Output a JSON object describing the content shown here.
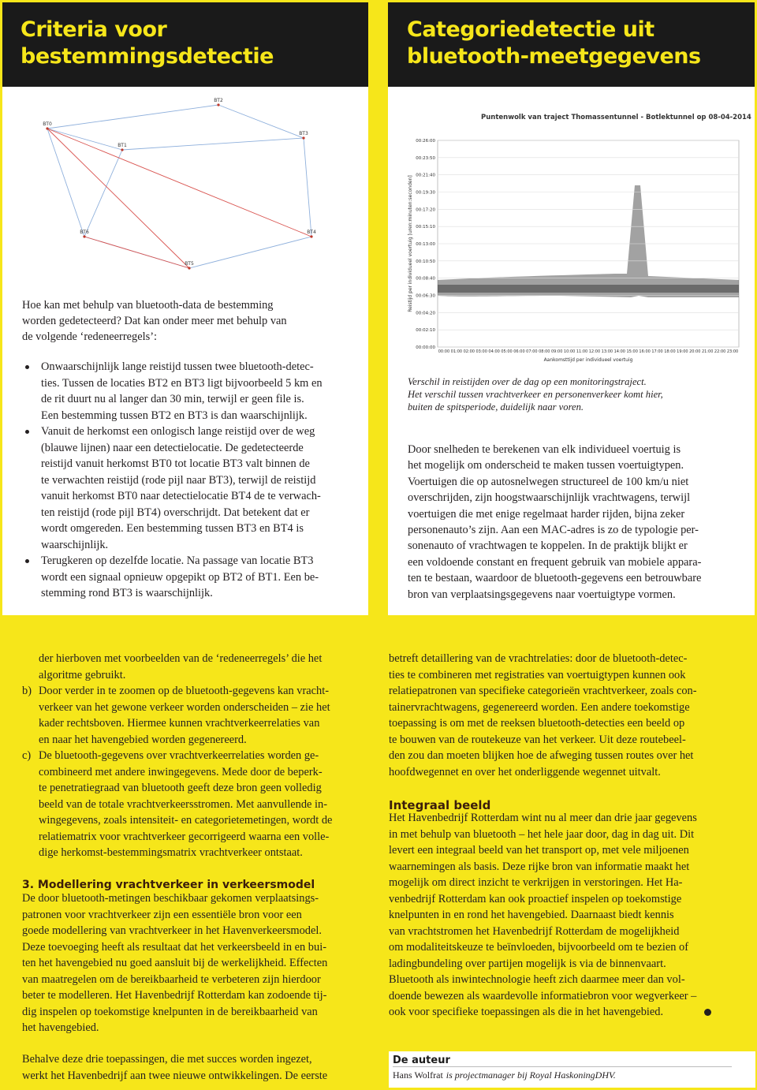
{
  "left_panel": {
    "title": [
      "Criteria voor",
      "bestemmingsdetectie"
    ],
    "diagram": {
      "nodes": [
        "BT2",
        "BT0",
        "BT3",
        "BT1",
        "BT6",
        "BT4",
        "BT5"
      ]
    },
    "intro": [
      "Hoe kan met behulp van bluetooth-data de bestemming",
      "worden gedetecteerd? Dat kan onder meer met behulp van",
      "de volgende ‘redeneerregels’:"
    ],
    "bullets": [
      [
        "Onwaarschijnlijk lange reistijd tussen twee bluetooth-detec-",
        "ties. Tussen de locaties BT2 en BT3 ligt bijvoorbeeld 5 km en",
        "de rit duurt nu al langer dan 30 min, terwijl er geen file is.",
        "Een bestemming tussen BT2 en BT3 is dan waarschijnlijk."
      ],
      [
        "Vanuit de herkomst een onlogisch lange reistijd over de weg",
        "(blauwe lijnen) naar een detectielocatie. De gedetecteerde",
        "reistijd vanuit herkomst BT0 tot locatie BT3 valt binnen de",
        "te verwachten reistijd (rode pijl naar BT3), terwijl de reistijd",
        "vanuit herkomst BT0 naar detectielocatie BT4 de te verwach-",
        "ten reistijd (rode pijl BT4) overschrijdt. Dat betekent dat er",
        "wordt omgereden. Een bestemming tussen BT3 en BT4 is",
        "waarschijnlijk."
      ],
      [
        "Terugkeren op dezelfde locatie. Na passage van locatie BT3",
        "wordt een signaal opnieuw opgepikt op BT2 of BT1. Een be-",
        "stemming rond BT3 is waarschijnlijk."
      ]
    ]
  },
  "right_panel": {
    "title": [
      "Categoriedetectie uit",
      "bluetooth-meetgegevens"
    ],
    "chart": {
      "title": "Puntenwolk van traject Thomassentunnel - Botlektunnel op 08-04-2014",
      "y_axis_label": "Reistijd per individueel voertuig [uren:minuten:seconden]",
      "x_axis_label": "Aankomsttijd per individueel voertuig",
      "yticks": [
        "00:26:00",
        "00:23:50",
        "00:21:40",
        "00:19:30",
        "00:17:20",
        "00:15:10",
        "00:13:00",
        "00:10:50",
        "00:08:40",
        "00:06:30",
        "00:04:20",
        "00:02:10",
        "00:00:00"
      ],
      "xticks": [
        "00:00",
        "01:00",
        "02:00",
        "03:00",
        "04:00",
        "05:00",
        "06:00",
        "07:00",
        "08:00",
        "09:00",
        "10:00",
        "11:00",
        "12:00",
        "13:00",
        "14:00",
        "15:00",
        "16:00",
        "17:00",
        "18:00",
        "19:00",
        "20:00",
        "21:00",
        "22:00",
        "23:00"
      ]
    },
    "caption": [
      "Verschil in reistijden over de dag op een monitoringstraject.",
      "Het verschil tussen vrachtverkeer en personenverkeer komt hier,",
      "buiten de spitsperiode, duidelijk naar voren."
    ],
    "body": [
      "Door snelheden te berekenen van elk individueel voertuig is",
      "het mogelijk om onderscheid te maken tussen voertuigtypen.",
      "Voertuigen die op autosnelwegen structureel de 100 km/u niet",
      "overschrijden, zijn hoogstwaarschijnlijk vrachtwagens, terwijl",
      "voertuigen die met enige regelmaat harder rijden, bijna zeker",
      "personenauto’s zijn. Aan een MAC-adres is zo de typologie per-",
      "sonenauto of vrachtwagen te koppelen. In de praktijk blijkt er",
      "een voldoende constant en frequent gebruik van mobiele appara-",
      "ten te bestaan, waardoor de bluetooth-gegevens een betrouwbare",
      "bron van verplaatsingsgegevens naar voertuigtype vormen."
    ]
  },
  "article": {
    "left_column": {
      "continuation": [
        "der hierboven met voorbeelden van de ‘redeneerregels’ die het",
        "algoritme gebruikt."
      ],
      "item_b": {
        "marker": "b)",
        "lines": [
          "Door verder in te zoomen op de bluetooth-gegevens kan vracht-",
          "verkeer van het gewone verkeer worden onderscheiden – zie het",
          "kader rechtsboven. Hiermee kunnen vrachtverkeerrelaties van",
          "en naar het havengebied worden gegenereerd."
        ]
      },
      "item_c": {
        "marker": "c)",
        "lines": [
          "De bluetooth-gegevens over vrachtverkeerrelaties worden ge-",
          "combineerd met andere inwingegevens. Mede door de beperk-",
          "te penetratiegraad van bluetooth geeft deze bron geen volledig",
          "beeld van de totale vrachtverkeersstromen. Met aanvullende in-",
          "wingegevens, zoals intensiteit- en categorietemetingen, wordt de",
          "relatiematrix voor vrachtverkeer gecorrigeerd waarna een volle-",
          "dige herkomst-bestemmingsmatrix vrachtverkeer ontstaat."
        ]
      },
      "heading": "3. Modellering vrachtverkeer in verkeersmodel",
      "section_3": [
        "De door bluetooth-metingen beschikbaar gekomen verplaatsings-",
        "patronen voor vrachtverkeer zijn een essentiële bron voor een",
        "goede modellering van vrachtverkeer in het Havenverkeersmodel.",
        "Deze toevoeging heeft als resultaat dat het verkeersbeeld in en bui-",
        "ten het havengebied nu goed aansluit bij de werkelijkheid. Effecten",
        "van maatregelen om de bereikbaarheid te verbeteren zijn hierdoor",
        "beter te modelleren. Het Havenbedrijf Rotterdam kan zodoende tij-",
        "dig inspelen op toekomstige knelpunten in de bereikbaarheid van",
        "het havengebied."
      ],
      "closing": [
        "Behalve deze drie toepassingen, die met succes worden ingezet,",
        "werkt het Havenbedrijf aan twee nieuwe ontwikkelingen. De eerste"
      ]
    },
    "right_column": {
      "intro": [
        "betreft detaillering van de vrachtrelaties: door de bluetooth-detec-",
        "ties te combineren met registraties van voertuigtypen kunnen ook",
        "relatiepatronen van specifieke categorieën vrachtverkeer, zoals con-",
        "tainervrachtwagens, gegenereerd worden. Een andere toekomstige",
        "toepassing is om met de reeksen bluetooth-detecties een beeld op",
        "te bouwen van de routekeuze van het verkeer. Uit deze routebeel-",
        "den zou dan moeten blijken hoe de afweging tussen routes over het",
        "hoofdwegennet en over het onderliggende wegennet uitvalt."
      ],
      "heading": "Integraal beeld",
      "body": [
        "Het Havenbedrijf Rotterdam wint nu al meer dan drie jaar gegevens",
        "in met behulp van bluetooth – het hele jaar door, dag in dag uit. Dit",
        "levert een integraal beeld van het transport op, met vele miljoenen",
        "waarnemingen als basis. Deze rijke bron van informatie maakt het",
        "mogelijk om direct inzicht te verkrijgen in verstoringen. Het Ha-",
        "venbedrijf Rotterdam kan ook proactief inspelen op toekomstige",
        "knelpunten in en rond het havengebied. Daarnaast biedt kennis",
        "van vrachtstromen het Havenbedrijf Rotterdam de mogelijkheid",
        "om modaliteitskeuze te beïnvloeden, bijvoorbeeld om te bezien of",
        "ladingbundeling over partijen mogelijk is via de binnenvaart.",
        "Bluetooth als inwintechnologie heeft zich daarmee meer dan vol-",
        "doende bewezen als waardevolle informatiebron voor wegverkeer –",
        "ook voor specifieke toepassingen als die in het havengebied."
      ]
    }
  },
  "author_box": {
    "heading": "De auteur",
    "name": "Hans Wolfrat",
    "role": "is projectmanager bij Royal HaskoningDHV."
  }
}
